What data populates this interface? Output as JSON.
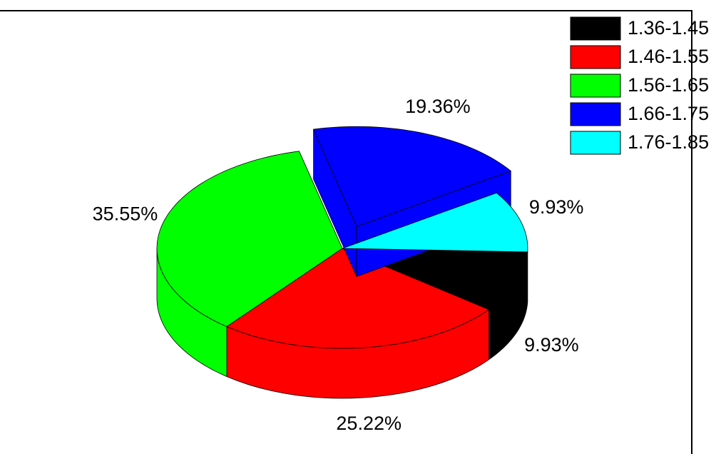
{
  "chart_data": {
    "type": "pie3d",
    "categories": [
      "1.36-1.45",
      "1.46-1.55",
      "1.56-1.65",
      "1.66-1.75",
      "1.76-1.85"
    ],
    "values": [
      9.93,
      25.22,
      35.55,
      19.36,
      9.93
    ],
    "value_labels": [
      "9.93%",
      "25.22%",
      "35.55%",
      "19.36%",
      "9.93%"
    ],
    "colors": [
      "#000000",
      "#ff0000",
      "#00ff00",
      "#0000ff",
      "#00ffff"
    ],
    "exploded": [
      false,
      false,
      false,
      true,
      false
    ],
    "legend": "top-right"
  }
}
